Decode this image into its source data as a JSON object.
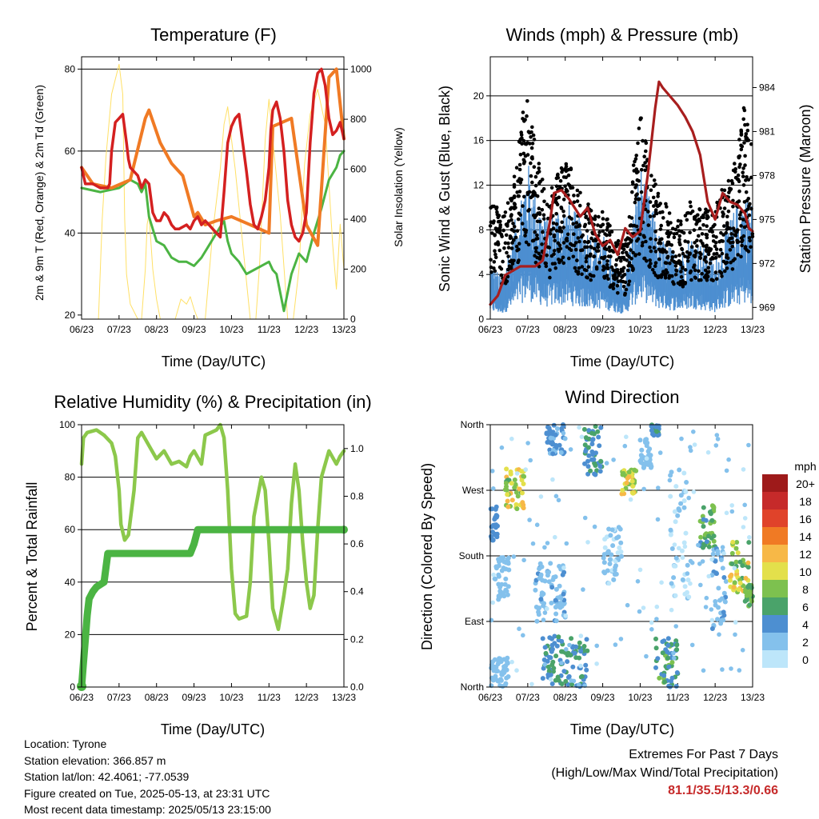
{
  "chart_data": [
    {
      "id": "temperature",
      "type": "line",
      "title": "Temperature (F)",
      "xlabel": "Time (Day/UTC)",
      "ylabel": "2m & 9m T (Red, Orange) & 2m Td (Green)",
      "y2label": "Solar Insolation (Yellow)",
      "x_ticks": [
        "06/23",
        "07/23",
        "08/23",
        "09/23",
        "10/23",
        "11/23",
        "12/23",
        "13/23"
      ],
      "ylim": [
        19,
        83
      ],
      "y_ticks": [
        20,
        40,
        60,
        80
      ],
      "y2lim": [
        0,
        1050
      ],
      "y2_ticks": [
        0,
        200,
        400,
        600,
        800,
        1000
      ],
      "grid_y": [
        40,
        60,
        80
      ],
      "colors": {
        "t2m": "#d42020",
        "t9m": "#f07a24",
        "td2m": "#4bb443",
        "solar": "#ffe066"
      },
      "series": [
        {
          "key": "t9m",
          "axis": "left",
          "x": [
            0,
            0.3,
            0.8,
            1.3,
            1.7,
            1.8,
            2.1,
            2.4,
            2.7,
            3.0,
            3.1,
            3.3,
            3.6,
            4.0,
            4.5,
            5.0,
            5.1,
            5.6,
            6.0,
            6.3,
            6.6,
            6.8,
            7.0
          ],
          "y": [
            56,
            52,
            51,
            53,
            68,
            70,
            62,
            57,
            54,
            44,
            45,
            42,
            43,
            44,
            42,
            40,
            66,
            68,
            42,
            37,
            78,
            80,
            63
          ]
        },
        {
          "key": "t2m",
          "axis": "left",
          "x": [
            0,
            0.1,
            0.3,
            0.5,
            0.7,
            0.75,
            0.8,
            0.9,
            1.0,
            1.1,
            1.2,
            1.25,
            1.3,
            1.4,
            1.5,
            1.6,
            1.7,
            1.8,
            1.9,
            2.0,
            2.1,
            2.2,
            2.3,
            2.4,
            2.5,
            2.6,
            2.8,
            2.9,
            3.0,
            3.1,
            3.2,
            3.3,
            3.4,
            3.5,
            3.6,
            3.7,
            3.8,
            3.9,
            4.0,
            4.1,
            4.2,
            4.3,
            4.4,
            4.5,
            4.6,
            4.7,
            4.8,
            4.9,
            5.0,
            5.05,
            5.1,
            5.2,
            5.3,
            5.4,
            5.5,
            5.6,
            5.7,
            5.8,
            5.9,
            6.0,
            6.1,
            6.2,
            6.3,
            6.4,
            6.5,
            6.6,
            6.7,
            6.8,
            6.9,
            7.0
          ],
          "y": [
            56,
            52,
            52,
            51,
            51,
            52,
            60,
            67,
            68,
            69,
            62,
            58,
            56,
            55,
            54,
            51,
            53,
            52,
            45,
            43,
            43,
            45,
            44,
            42,
            41,
            41,
            42,
            41,
            43,
            44,
            42,
            43,
            42,
            41,
            40,
            39,
            50,
            62,
            66,
            68,
            69,
            62,
            55,
            47,
            42,
            41,
            44,
            48,
            56,
            65,
            70,
            72,
            68,
            60,
            48,
            42,
            39,
            38,
            40,
            45,
            62,
            74,
            79,
            80,
            76,
            68,
            64,
            65,
            67,
            63
          ]
        },
        {
          "key": "td2m",
          "axis": "left",
          "x": [
            0,
            0.5,
            1.0,
            1.3,
            1.5,
            1.6,
            1.7,
            1.8,
            2.0,
            2.2,
            2.4,
            2.6,
            2.8,
            3.0,
            3.2,
            3.4,
            3.6,
            3.8,
            3.9,
            4.0,
            4.1,
            4.2,
            4.4,
            4.6,
            4.8,
            5.0,
            5.1,
            5.2,
            5.4,
            5.6,
            5.8,
            6.0,
            6.2,
            6.4,
            6.6,
            6.8,
            6.9,
            7.0
          ],
          "y": [
            51,
            50,
            51,
            53,
            52,
            50,
            52,
            44,
            38,
            37,
            34,
            33,
            33,
            32,
            34,
            37,
            40,
            43,
            38,
            35,
            34,
            33,
            30,
            31,
            32,
            33,
            31,
            30,
            21,
            30,
            35,
            33,
            40,
            46,
            53,
            56,
            59,
            60
          ]
        },
        {
          "key": "solar",
          "axis": "right",
          "x": [
            0.45,
            0.55,
            0.65,
            0.8,
            1.0,
            1.1,
            1.15,
            1.2,
            1.3,
            1.5,
            1.6,
            1.7,
            1.75,
            1.8,
            1.9,
            2.0,
            2.1,
            2.5,
            2.65,
            2.8,
            2.9,
            3.0,
            3.1,
            3.3,
            3.5,
            3.7,
            3.8,
            3.9,
            4.0,
            4.1,
            4.3,
            4.5,
            4.65,
            4.75,
            4.9,
            5.0,
            5.1,
            5.3,
            5.5,
            5.65,
            5.8,
            5.95,
            6.1,
            6.3,
            6.5,
            6.6,
            6.7,
            6.8,
            6.9,
            7.0
          ],
          "y": [
            0,
            400,
            650,
            900,
            1020,
            900,
            400,
            180,
            60,
            0,
            0,
            200,
            380,
            420,
            200,
            80,
            0,
            0,
            80,
            60,
            90,
            40,
            0,
            0,
            350,
            600,
            780,
            850,
            720,
            600,
            300,
            0,
            0,
            220,
            720,
            880,
            720,
            420,
            0,
            0,
            200,
            620,
            820,
            920,
            780,
            540,
            300,
            120,
            380,
            200
          ]
        }
      ]
    },
    {
      "id": "winds",
      "type": "scatter",
      "title": "Winds (mph) & Pressure (mb)",
      "xlabel": "Time (Day/UTC)",
      "ylabel": "Sonic Wind & Gust (Blue, Black)",
      "y2label": "Station Pressure (Maroon)",
      "x_ticks": [
        "06/23",
        "07/23",
        "08/23",
        "09/23",
        "10/23",
        "11/23",
        "12/23",
        "13/23"
      ],
      "ylim": [
        0,
        23.5
      ],
      "y_ticks": [
        0,
        4,
        8,
        12,
        16,
        20
      ],
      "y2lim": [
        968.2,
        986.1
      ],
      "y2_ticks": [
        969,
        972,
        975,
        978,
        981,
        984
      ],
      "grid_y": [
        4,
        8,
        12,
        16,
        20
      ],
      "colors": {
        "wind": "#4d8fd1",
        "gust": "#000000",
        "pressure": "#a81e1e"
      },
      "wind_envelope": {
        "x": [
          0,
          0.3,
          0.6,
          0.8,
          1.0,
          1.2,
          1.5,
          1.8,
          2.1,
          2.4,
          2.7,
          3.0,
          3.3,
          3.6,
          3.8,
          4.0,
          4.2,
          4.5,
          4.8,
          5.1,
          5.4,
          5.7,
          6.0,
          6.2,
          6.4,
          6.6,
          6.8,
          7.0
        ],
        "wind": [
          4,
          3,
          6,
          9,
          11,
          9,
          7,
          8,
          8,
          7,
          6,
          6,
          4,
          3,
          7,
          11,
          9,
          6,
          5,
          5,
          6,
          5,
          4,
          6,
          7,
          8,
          9,
          8
        ],
        "gust": [
          12,
          8,
          11,
          16,
          19,
          14,
          10,
          12,
          13,
          11,
          9,
          9,
          7,
          6,
          12,
          17,
          14,
          10,
          9,
          8,
          10,
          9,
          9,
          11,
          12,
          14,
          18,
          16
        ]
      },
      "pressure": {
        "x": [
          0,
          0.2,
          0.4,
          0.8,
          1.2,
          1.4,
          1.6,
          1.7,
          1.9,
          2.1,
          2.4,
          2.6,
          2.8,
          3.0,
          3.2,
          3.4,
          3.6,
          3.8,
          4.0,
          4.2,
          4.4,
          4.5,
          4.6,
          4.8,
          5.0,
          5.2,
          5.4,
          5.6,
          5.8,
          6.0,
          6.2,
          6.4,
          6.6,
          6.8,
          6.9,
          7.0
        ],
        "y": [
          969.2,
          969.8,
          971.2,
          971.8,
          971.8,
          972.2,
          975.0,
          976.8,
          977.0,
          976.4,
          975.2,
          975.8,
          974.0,
          973.2,
          973.6,
          972.6,
          974.4,
          973.8,
          974.2,
          978.0,
          982.6,
          984.4,
          984.0,
          983.4,
          982.8,
          982.0,
          981.0,
          979.4,
          976.2,
          975.0,
          976.8,
          976.2,
          976.0,
          975.4,
          974.4,
          974.2
        ]
      }
    },
    {
      "id": "humidity",
      "type": "line",
      "title": "Relative Humidity (%) & Precipitation (in)",
      "xlabel": "Time (Day/UTC)",
      "ylabel": "Percent & Total Rainfall",
      "x_ticks": [
        "06/23",
        "07/23",
        "08/23",
        "09/23",
        "10/23",
        "11/23",
        "12/23",
        "13/23"
      ],
      "ylim": [
        0,
        100
      ],
      "y_ticks": [
        0,
        20,
        40,
        60,
        80,
        100
      ],
      "y2lim": [
        0,
        1.1
      ],
      "y2_ticks": [
        "0.0",
        "0.2",
        "0.4",
        "0.6",
        "0.8",
        "1.0"
      ],
      "grid_y": [
        20,
        40,
        60,
        80
      ],
      "colors": {
        "rh": "#8cc84b",
        "precip": "#4bb443"
      },
      "series": [
        {
          "key": "rh",
          "axis": "left",
          "x": [
            0,
            0.05,
            0.15,
            0.4,
            0.6,
            0.8,
            0.9,
            1.0,
            1.05,
            1.15,
            1.25,
            1.4,
            1.5,
            1.6,
            1.8,
            2.0,
            2.2,
            2.4,
            2.6,
            2.8,
            2.9,
            3.0,
            3.2,
            3.3,
            3.45,
            3.6,
            3.7,
            3.8,
            3.9,
            4.0,
            4.1,
            4.2,
            4.4,
            4.5,
            4.6,
            4.8,
            4.9,
            5.0,
            5.1,
            5.25,
            5.4,
            5.5,
            5.6,
            5.7,
            5.8,
            5.9,
            6.0,
            6.1,
            6.2,
            6.3,
            6.4,
            6.5,
            6.6,
            6.8,
            6.9,
            7.0
          ],
          "y": [
            85,
            95,
            97,
            98,
            96,
            93,
            88,
            75,
            62,
            56,
            58,
            75,
            95,
            97,
            92,
            87,
            90,
            85,
            86,
            84,
            88,
            90,
            85,
            96,
            97,
            98,
            100,
            95,
            75,
            45,
            28,
            26,
            27,
            40,
            65,
            80,
            75,
            55,
            30,
            22,
            35,
            45,
            70,
            85,
            75,
            55,
            40,
            30,
            35,
            60,
            80,
            85,
            90,
            85,
            88,
            90
          ]
        },
        {
          "key": "precip",
          "axis": "right",
          "x": [
            0,
            0.05,
            0.1,
            0.15,
            0.2,
            0.3,
            0.4,
            0.6,
            0.7,
            1.0,
            2.9,
            3.0,
            3.1,
            3.2,
            7.0
          ],
          "y": [
            0.0,
            0.1,
            0.2,
            0.3,
            0.37,
            0.4,
            0.42,
            0.44,
            0.56,
            0.56,
            0.56,
            0.6,
            0.66,
            0.66,
            0.66
          ]
        }
      ]
    },
    {
      "id": "wind_direction",
      "type": "scatter",
      "title": "Wind Direction",
      "xlabel": "Time (Day/UTC)",
      "ylabel": "Direction (Colored By Speed)",
      "x_ticks": [
        "06/23",
        "07/23",
        "08/23",
        "09/23",
        "10/23",
        "11/23",
        "12/23",
        "13/23"
      ],
      "y_ticks": [
        "North",
        "East",
        "South",
        "West",
        "North"
      ],
      "ylim": [
        0,
        360
      ],
      "legend_title": "mph",
      "legend_labels": [
        "0",
        "2",
        "4",
        "6",
        "8",
        "10",
        "12",
        "14",
        "16",
        "18",
        "20+"
      ],
      "legend_colors": [
        "#bde6fa",
        "#84c1ec",
        "#4d8fd1",
        "#4aa36a",
        "#7dc14f",
        "#e3e04b",
        "#f7b847",
        "#f07a24",
        "#e0432a",
        "#c62a2a",
        "#9e1a1a"
      ],
      "legend_placement": "right",
      "clusters": [
        {
          "x": [
            0.0,
            0.2
          ],
          "dir": [
            200,
            250
          ],
          "spd": [
            3,
            5
          ]
        },
        {
          "x": [
            0.1,
            0.5
          ],
          "dir": [
            120,
            180
          ],
          "spd": [
            1,
            3
          ]
        },
        {
          "x": [
            0.4,
            0.9
          ],
          "dir": [
            240,
            300
          ],
          "spd": [
            6,
            13
          ]
        },
        {
          "x": [
            0.0,
            0.5
          ],
          "dir": [
            0,
            40
          ],
          "spd": [
            1,
            3
          ]
        },
        {
          "x": [
            1.4,
            2.6
          ],
          "dir": [
            0,
            70
          ],
          "spd": [
            3,
            7
          ]
        },
        {
          "x": [
            1.2,
            2.0
          ],
          "dir": [
            90,
            170
          ],
          "spd": [
            1,
            4
          ]
        },
        {
          "x": [
            1.5,
            2.0
          ],
          "dir": [
            320,
            360
          ],
          "spd": [
            2,
            5
          ]
        },
        {
          "x": [
            2.5,
            3.0
          ],
          "dir": [
            290,
            360
          ],
          "spd": [
            3,
            7
          ]
        },
        {
          "x": [
            3.0,
            3.5
          ],
          "dir": [
            140,
            220
          ],
          "spd": [
            0,
            3
          ]
        },
        {
          "x": [
            3.5,
            3.9
          ],
          "dir": [
            265,
            300
          ],
          "spd": [
            7,
            12
          ]
        },
        {
          "x": [
            4.0,
            4.3
          ],
          "dir": [
            300,
            340
          ],
          "spd": [
            1,
            3
          ]
        },
        {
          "x": [
            4.4,
            5.0
          ],
          "dir": [
            0,
            70
          ],
          "spd": [
            3,
            8
          ]
        },
        {
          "x": [
            4.3,
            4.5
          ],
          "dir": [
            345,
            360
          ],
          "spd": [
            3,
            6
          ]
        },
        {
          "x": [
            4.8,
            5.3
          ],
          "dir": [
            120,
            300
          ],
          "spd": [
            0,
            2
          ]
        },
        {
          "x": [
            5.6,
            6.0
          ],
          "dir": [
            190,
            250
          ],
          "spd": [
            4,
            9
          ]
        },
        {
          "x": [
            5.9,
            6.3
          ],
          "dir": [
            80,
            190
          ],
          "spd": [
            1,
            4
          ]
        },
        {
          "x": [
            6.4,
            6.9
          ],
          "dir": [
            130,
            200
          ],
          "spd": [
            6,
            12
          ]
        },
        {
          "x": [
            6.8,
            7.0
          ],
          "dir": [
            110,
            140
          ],
          "spd": [
            6,
            9
          ]
        }
      ]
    }
  ],
  "info": {
    "location": "Location: Tyrone",
    "elevation": "Station elevation: 366.857 m",
    "latlon": "Station lat/lon: 42.4061; -77.0539",
    "created": "Figure created on Tue, 2025-05-13, at 23:31 UTC",
    "recent": "Most recent data timestamp: 2025/05/13 23:15:00"
  },
  "extremes": {
    "title": "Extremes For Past 7 Days",
    "subtitle": "(High/Low/Max Wind/Total Precipitation)",
    "values": "81.1/35.5/13.3/0.66"
  }
}
